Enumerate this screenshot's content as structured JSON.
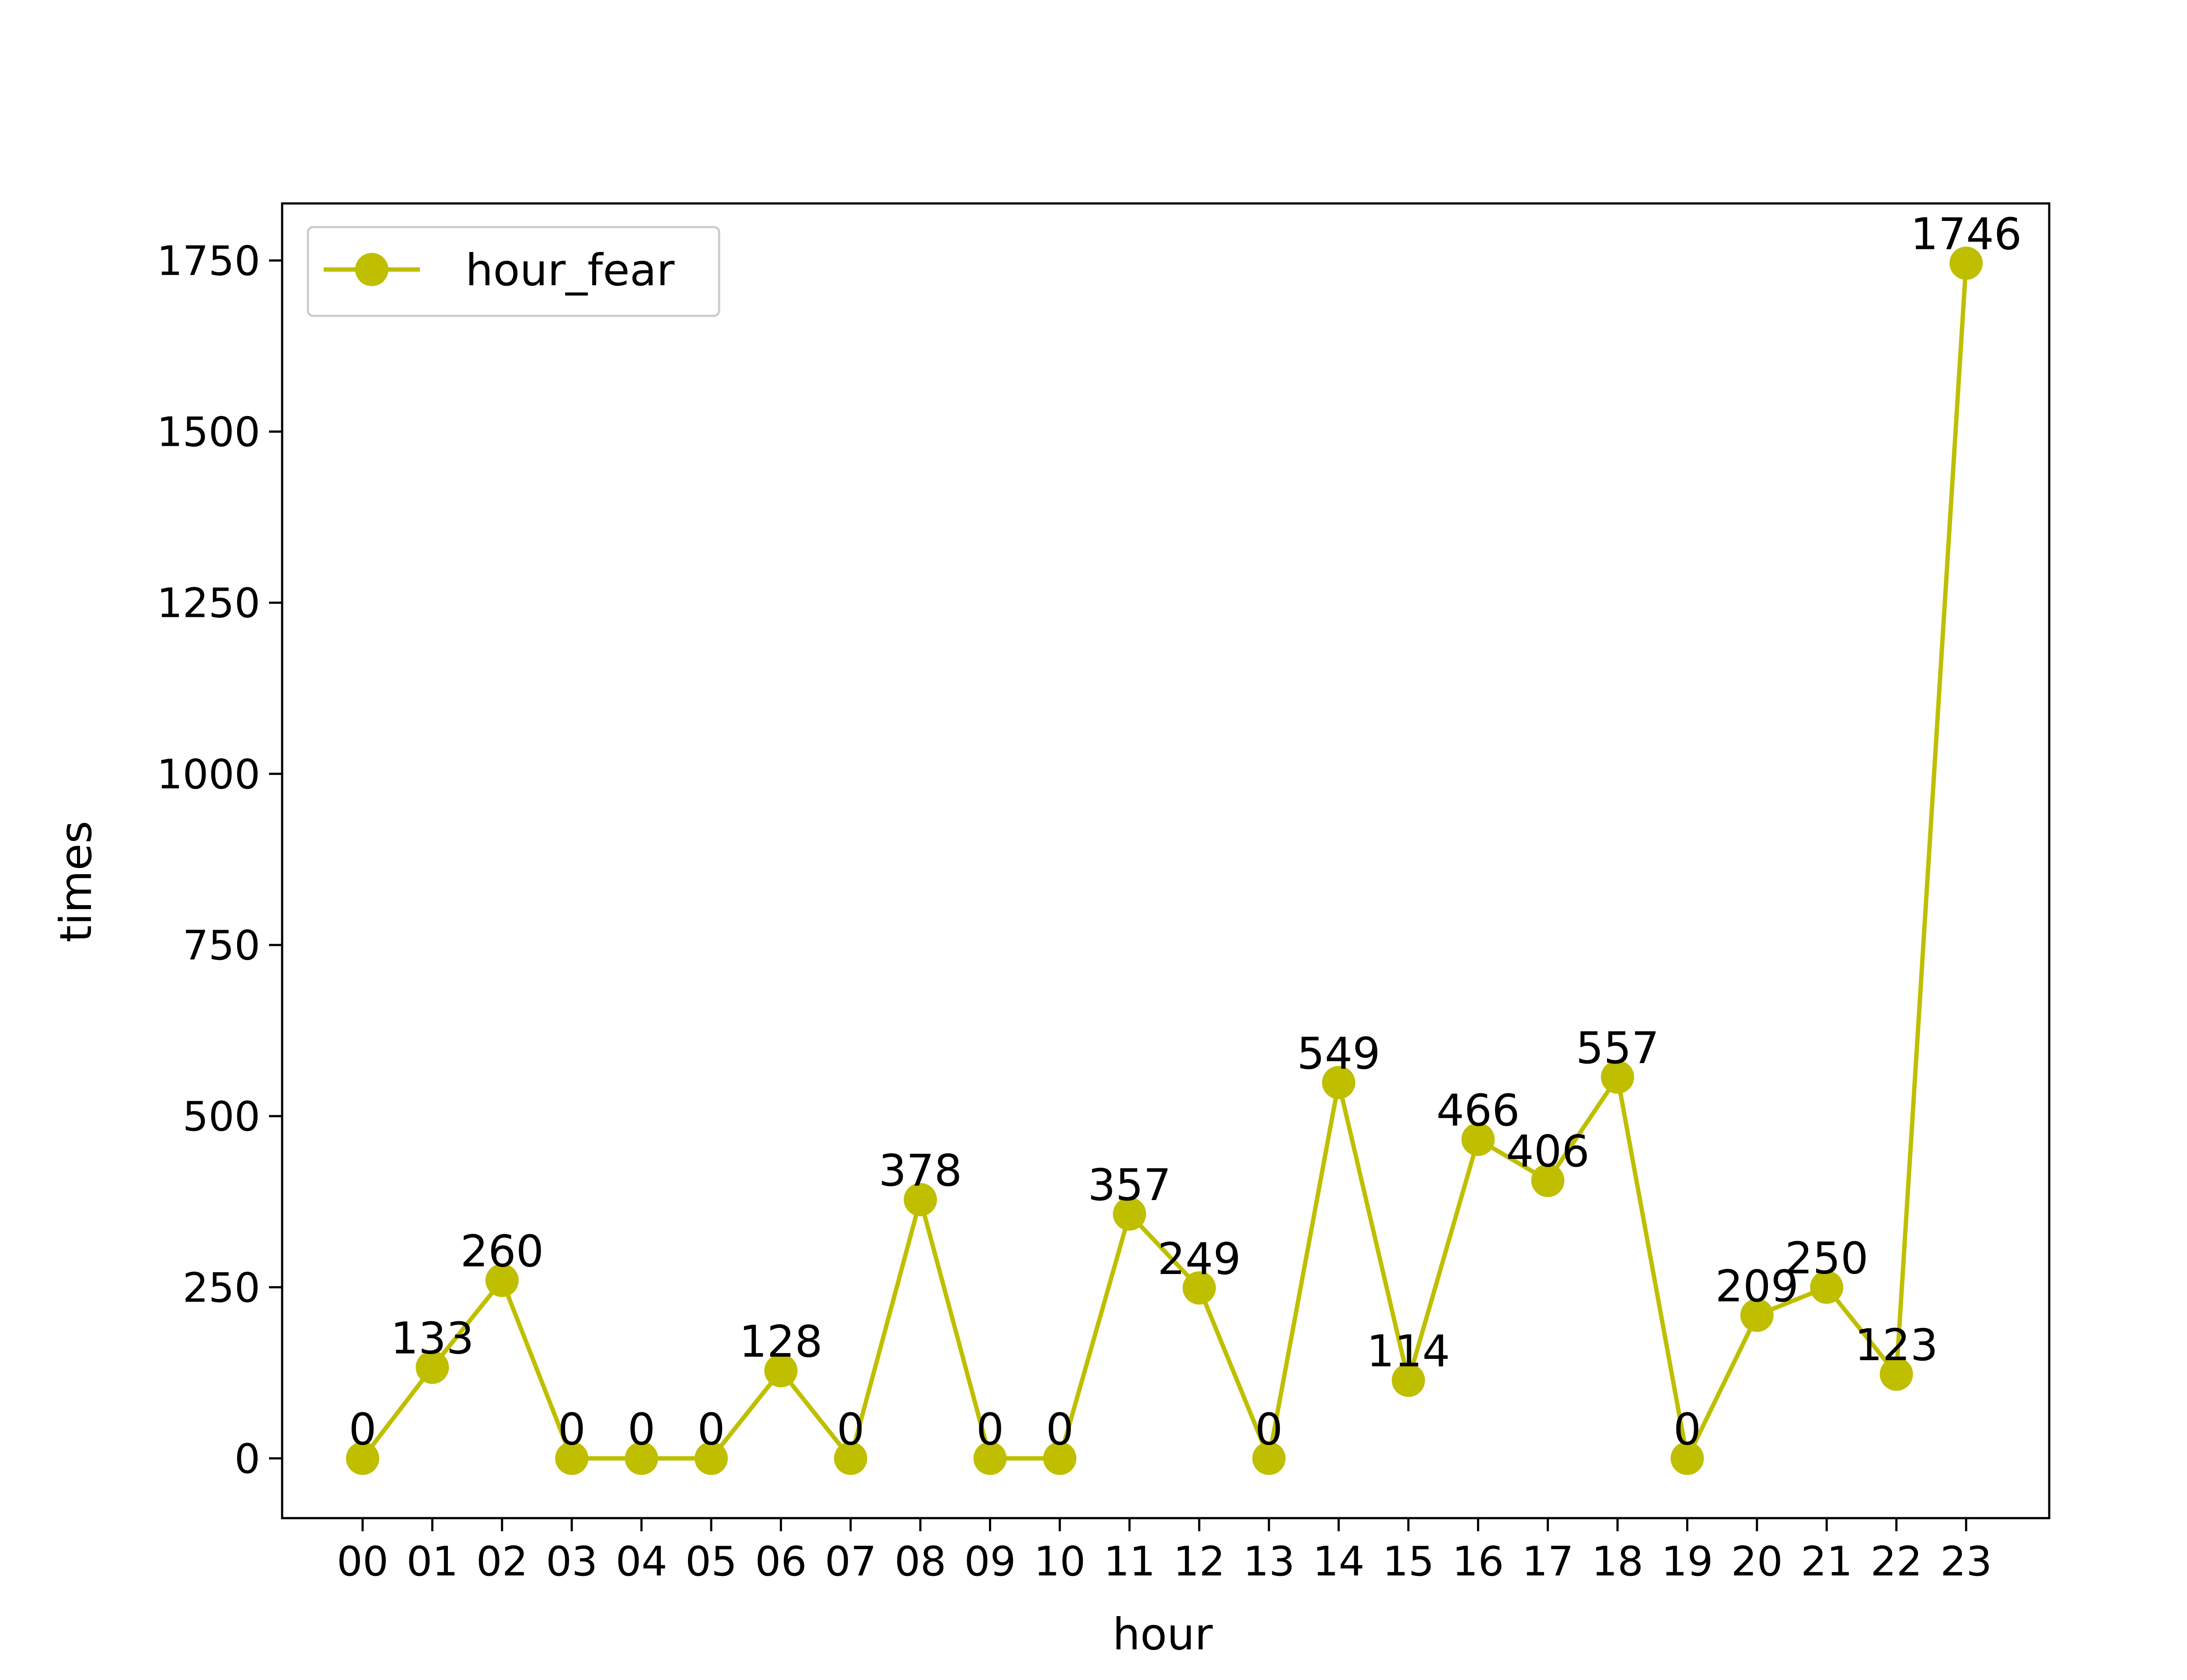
{
  "chart_data": {
    "type": "line",
    "title": "",
    "xlabel": "hour",
    "ylabel": "times",
    "categories": [
      "00",
      "01",
      "02",
      "03",
      "04",
      "05",
      "06",
      "07",
      "08",
      "09",
      "10",
      "11",
      "12",
      "13",
      "14",
      "15",
      "16",
      "17",
      "18",
      "19",
      "20",
      "21",
      "22",
      "23"
    ],
    "series": [
      {
        "name": "hour_fear",
        "color": "#bfbf00",
        "marker": "circle",
        "values": [
          0,
          133,
          260,
          0,
          0,
          0,
          128,
          0,
          378,
          0,
          0,
          357,
          249,
          0,
          549,
          114,
          466,
          406,
          557,
          0,
          209,
          250,
          123,
          1746
        ]
      }
    ],
    "data_labels": [
      "0",
      "133",
      "260",
      "0",
      "0",
      "0",
      "128",
      "0",
      "378",
      "0",
      "0",
      "357",
      "249",
      "0",
      "549",
      "114",
      "466",
      "406",
      "557",
      "0",
      "209",
      "250",
      "123",
      "1746"
    ],
    "ylim": [
      -87.3,
      1833.3
    ],
    "yticks": [
      0,
      250,
      500,
      750,
      1000,
      1250,
      1500,
      1750
    ],
    "ytick_labels": [
      "0",
      "250",
      "500",
      "750",
      "1000",
      "1250",
      "1500",
      "1750"
    ],
    "grid": false,
    "legend_position": "upper left"
  }
}
